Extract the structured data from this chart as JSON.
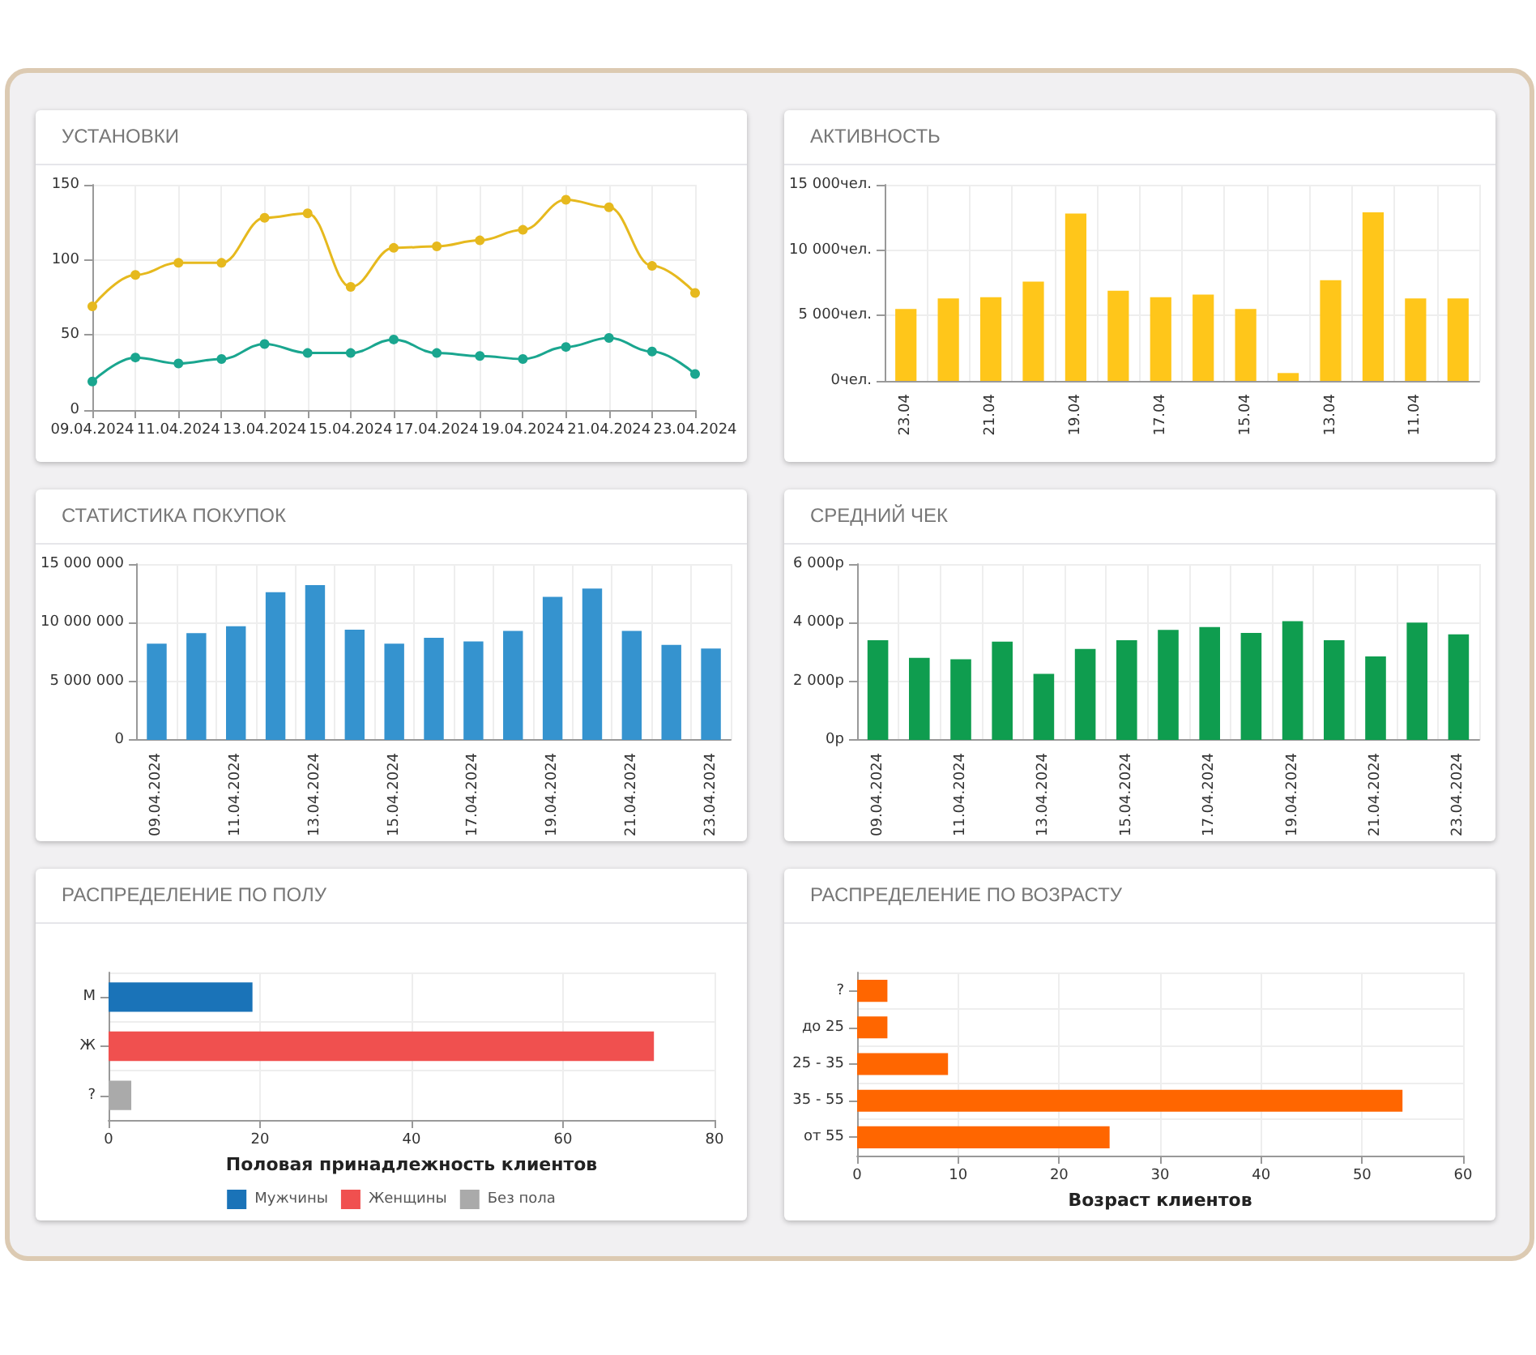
{
  "chart_data": [
    {
      "type": "line",
      "title": "УСТАНОВКИ",
      "categories": [
        "09.04.2024",
        null,
        "11.04.2024",
        null,
        "13.04.2024",
        null,
        "15.04.2024",
        null,
        "17.04.2024",
        null,
        "19.04.2024",
        null,
        "21.04.2024",
        null,
        "23.04.2024"
      ],
      "series": [
        {
          "color": "#e6b91e",
          "values": [
            69,
            90,
            98,
            98,
            128,
            131,
            82,
            108,
            109,
            113,
            120,
            140,
            135,
            96,
            78
          ]
        },
        {
          "color": "#1aa68f",
          "values": [
            19,
            35,
            31,
            34,
            44,
            38,
            38,
            47,
            38,
            36,
            34,
            42,
            48,
            39,
            24
          ]
        }
      ],
      "ylim": [
        0,
        150
      ],
      "yticks": [
        0,
        50,
        100,
        150
      ],
      "grid": true,
      "marker": "circle",
      "legend": false
    },
    {
      "type": "bar",
      "title": "АКТИВНОСТЬ",
      "categories": [
        "23.04",
        null,
        "21.04",
        null,
        "19.04",
        null,
        "17.04",
        null,
        "15.04",
        null,
        "13.04",
        null,
        "11.04",
        null
      ],
      "values": [
        5500,
        6300,
        6400,
        7600,
        12800,
        6900,
        6400,
        6600,
        5500,
        600,
        7700,
        12900,
        6300,
        6300
      ],
      "color": "#ffc61a",
      "ylim": [
        0,
        15000
      ],
      "yticks": [
        {
          "value": 0,
          "label": "0чел."
        },
        {
          "value": 5000,
          "label": "5 000чел."
        },
        {
          "value": 10000,
          "label": "10 000чел."
        },
        {
          "value": 15000,
          "label": "15 000чел."
        }
      ],
      "grid": true
    },
    {
      "type": "bar",
      "title": "СТАТИСТИКА ПОКУПОК",
      "categories": [
        "09.04.2024",
        null,
        "11.04.2024",
        null,
        "13.04.2024",
        null,
        "15.04.2024",
        null,
        "17.04.2024",
        null,
        "19.04.2024",
        null,
        "21.04.2024",
        null,
        "23.04.2024"
      ],
      "values": [
        8200000,
        9100000,
        9700000,
        12600000,
        13200000,
        9400000,
        8200000,
        8700000,
        8400000,
        9300000,
        12200000,
        12900000,
        9300000,
        8100000,
        7800000
      ],
      "color": "#3593cf",
      "ylim": [
        0,
        15000000
      ],
      "yticks": [
        {
          "value": 0,
          "label": "0"
        },
        {
          "value": 5000000,
          "label": "5 000 000"
        },
        {
          "value": 10000000,
          "label": "10 000 000"
        },
        {
          "value": 15000000,
          "label": "15 000 000"
        }
      ],
      "grid": true
    },
    {
      "type": "bar",
      "title": "СРЕДНИЙ ЧЕК",
      "categories": [
        "09.04.2024",
        null,
        "11.04.2024",
        null,
        "13.04.2024",
        null,
        "15.04.2024",
        null,
        "17.04.2024",
        null,
        "19.04.2024",
        null,
        "21.04.2024",
        null,
        "23.04.2024"
      ],
      "values": [
        3400,
        2800,
        2750,
        3350,
        2250,
        3100,
        3400,
        3750,
        3850,
        3650,
        4050,
        3400,
        2850,
        4000,
        3600
      ],
      "color": "#0f9d4f",
      "ylim": [
        0,
        6000
      ],
      "yticks": [
        {
          "value": 0,
          "label": "0р"
        },
        {
          "value": 2000,
          "label": "2 000р"
        },
        {
          "value": 4000,
          "label": "4 000р"
        },
        {
          "value": 6000,
          "label": "6 000р"
        }
      ],
      "grid": true
    },
    {
      "type": "bar",
      "title": "РАСПРЕДЕЛЕНИЕ ПО ПОЛУ",
      "orientation": "horizontal",
      "stacked": true,
      "categories": [
        "М",
        "Ж",
        "?"
      ],
      "series": [
        {
          "name": "Мужчины",
          "color": "#1a73b8",
          "values": [
            19,
            null,
            null
          ]
        },
        {
          "name": "Женщины",
          "color": "#f0504f",
          "values": [
            null,
            72,
            null
          ]
        },
        {
          "name": "Без пола",
          "color": "#aaaaaa",
          "values": [
            null,
            null,
            3
          ]
        }
      ],
      "xlabel": "Половая принадлежность клиентов",
      "xlim": [
        0,
        80
      ],
      "xticks": [
        0,
        20,
        40,
        60,
        80
      ],
      "grid": true,
      "legend": "bottom"
    },
    {
      "type": "bar",
      "title": "РАСПРЕДЕЛЕНИЕ ПО ВОЗРАСТУ",
      "orientation": "horizontal",
      "categories": [
        "?",
        "до 25",
        "25 - 35",
        "35 - 55",
        "от 55"
      ],
      "values": [
        3,
        3,
        9,
        54,
        25
      ],
      "color": "#ff6600",
      "xlabel": "Возраст клиентов",
      "xlim": [
        0,
        60
      ],
      "xticks": [
        0,
        10,
        20,
        30,
        40,
        50,
        60
      ],
      "grid": true
    }
  ]
}
